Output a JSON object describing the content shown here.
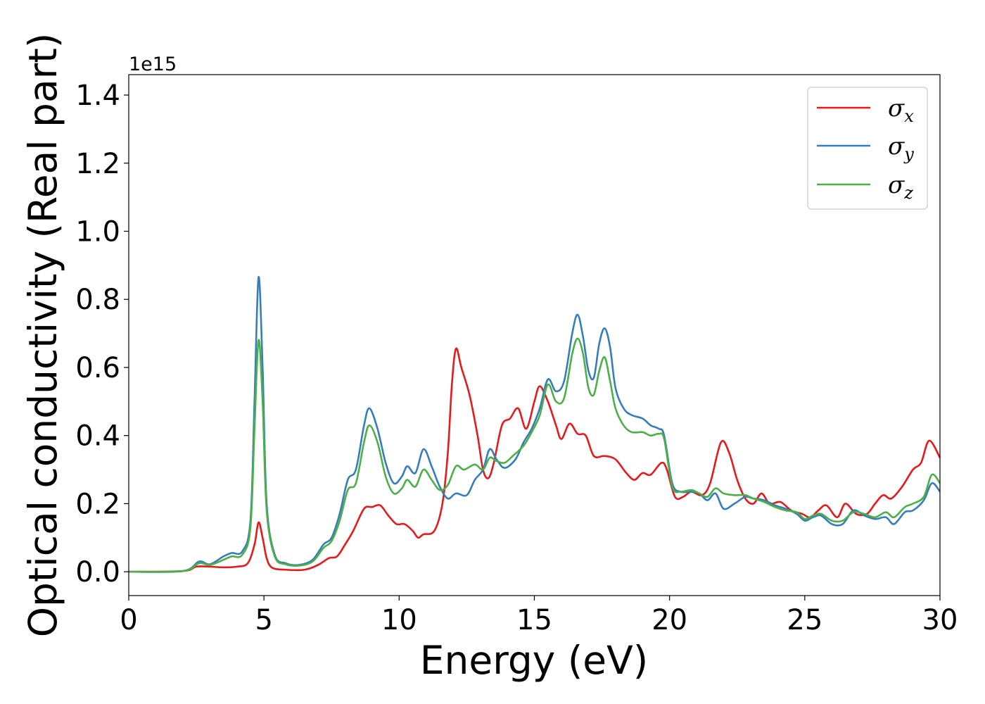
{
  "chart_data": {
    "type": "line",
    "title": "",
    "xlabel": "Energy (eV)",
    "ylabel": "Optical conductivity (Real part)",
    "y_offset_label": "1e15",
    "xlim": [
      0,
      30
    ],
    "ylim": [
      -0.07,
      1.46
    ],
    "xticks": [
      0,
      5,
      10,
      15,
      20,
      25,
      30
    ],
    "yticks": [
      0.0,
      0.2,
      0.4,
      0.6,
      0.8,
      1.0,
      1.2,
      1.4
    ],
    "ytick_labels": [
      "0.0",
      "0.2",
      "0.4",
      "0.6",
      "0.8",
      "1.0",
      "1.2",
      "1.4"
    ],
    "grid": false,
    "legend_position": "top-right",
    "series": [
      {
        "name": "σx",
        "symbol": "σ",
        "subscript": "x",
        "color": "#e41a1c",
        "points": [
          [
            0,
            0
          ],
          [
            2,
            0.002
          ],
          [
            2.5,
            0.015
          ],
          [
            3,
            0.015
          ],
          [
            3.5,
            0.013
          ],
          [
            4,
            0.015
          ],
          [
            4.4,
            0.025
          ],
          [
            4.65,
            0.08
          ],
          [
            4.8,
            0.145
          ],
          [
            4.95,
            0.1
          ],
          [
            5.1,
            0.04
          ],
          [
            5.3,
            0.012
          ],
          [
            5.8,
            0.006
          ],
          [
            6.5,
            0.006
          ],
          [
            7,
            0.02
          ],
          [
            7.4,
            0.04
          ],
          [
            7.7,
            0.045
          ],
          [
            8,
            0.08
          ],
          [
            8.3,
            0.12
          ],
          [
            8.7,
            0.185
          ],
          [
            9,
            0.19
          ],
          [
            9.3,
            0.195
          ],
          [
            9.6,
            0.165
          ],
          [
            9.9,
            0.14
          ],
          [
            10.2,
            0.14
          ],
          [
            10.5,
            0.12
          ],
          [
            10.7,
            0.1
          ],
          [
            10.9,
            0.11
          ],
          [
            11.3,
            0.12
          ],
          [
            11.6,
            0.2
          ],
          [
            11.8,
            0.35
          ],
          [
            11.95,
            0.55
          ],
          [
            12.1,
            0.655
          ],
          [
            12.3,
            0.6
          ],
          [
            12.6,
            0.52
          ],
          [
            12.9,
            0.4
          ],
          [
            13.1,
            0.3
          ],
          [
            13.3,
            0.275
          ],
          [
            13.5,
            0.32
          ],
          [
            13.8,
            0.43
          ],
          [
            14.1,
            0.45
          ],
          [
            14.4,
            0.48
          ],
          [
            14.7,
            0.42
          ],
          [
            15.0,
            0.5
          ],
          [
            15.2,
            0.545
          ],
          [
            15.5,
            0.5
          ],
          [
            15.8,
            0.43
          ],
          [
            16.0,
            0.39
          ],
          [
            16.3,
            0.435
          ],
          [
            16.6,
            0.405
          ],
          [
            16.9,
            0.4
          ],
          [
            17.2,
            0.34
          ],
          [
            17.6,
            0.34
          ],
          [
            18.0,
            0.33
          ],
          [
            18.4,
            0.29
          ],
          [
            18.7,
            0.27
          ],
          [
            19.0,
            0.29
          ],
          [
            19.3,
            0.285
          ],
          [
            19.7,
            0.32
          ],
          [
            19.9,
            0.3
          ],
          [
            20.2,
            0.22
          ],
          [
            20.5,
            0.22
          ],
          [
            20.8,
            0.235
          ],
          [
            21.2,
            0.225
          ],
          [
            21.5,
            0.26
          ],
          [
            21.9,
            0.38
          ],
          [
            22.2,
            0.35
          ],
          [
            22.5,
            0.27
          ],
          [
            22.8,
            0.215
          ],
          [
            23.1,
            0.2
          ],
          [
            23.4,
            0.23
          ],
          [
            23.7,
            0.2
          ],
          [
            24.1,
            0.205
          ],
          [
            24.5,
            0.18
          ],
          [
            24.9,
            0.17
          ],
          [
            25.2,
            0.16
          ],
          [
            25.5,
            0.18
          ],
          [
            25.8,
            0.195
          ],
          [
            26.2,
            0.16
          ],
          [
            26.5,
            0.2
          ],
          [
            26.9,
            0.17
          ],
          [
            27.3,
            0.17
          ],
          [
            27.6,
            0.2
          ],
          [
            27.9,
            0.225
          ],
          [
            28.2,
            0.215
          ],
          [
            28.6,
            0.25
          ],
          [
            29.0,
            0.3
          ],
          [
            29.3,
            0.32
          ],
          [
            29.6,
            0.385
          ],
          [
            30.0,
            0.335
          ]
        ]
      },
      {
        "name": "σy",
        "symbol": "σ",
        "subscript": "y",
        "color": "#377eb8",
        "points": [
          [
            0,
            0
          ],
          [
            2,
            0.002
          ],
          [
            2.6,
            0.03
          ],
          [
            3,
            0.022
          ],
          [
            3.5,
            0.045
          ],
          [
            3.8,
            0.055
          ],
          [
            4.2,
            0.06
          ],
          [
            4.5,
            0.15
          ],
          [
            4.65,
            0.5
          ],
          [
            4.8,
            0.865
          ],
          [
            4.95,
            0.6
          ],
          [
            5.1,
            0.2
          ],
          [
            5.4,
            0.05
          ],
          [
            5.8,
            0.025
          ],
          [
            6.3,
            0.02
          ],
          [
            6.8,
            0.035
          ],
          [
            7.2,
            0.08
          ],
          [
            7.5,
            0.1
          ],
          [
            7.8,
            0.17
          ],
          [
            8.1,
            0.27
          ],
          [
            8.4,
            0.3
          ],
          [
            8.7,
            0.43
          ],
          [
            8.9,
            0.48
          ],
          [
            9.2,
            0.42
          ],
          [
            9.5,
            0.32
          ],
          [
            9.8,
            0.26
          ],
          [
            10.1,
            0.28
          ],
          [
            10.3,
            0.31
          ],
          [
            10.6,
            0.29
          ],
          [
            10.9,
            0.36
          ],
          [
            11.2,
            0.31
          ],
          [
            11.5,
            0.25
          ],
          [
            11.8,
            0.215
          ],
          [
            12.1,
            0.23
          ],
          [
            12.5,
            0.225
          ],
          [
            12.8,
            0.27
          ],
          [
            13.1,
            0.3
          ],
          [
            13.35,
            0.36
          ],
          [
            13.6,
            0.33
          ],
          [
            13.9,
            0.305
          ],
          [
            14.3,
            0.33
          ],
          [
            14.6,
            0.38
          ],
          [
            14.9,
            0.42
          ],
          [
            15.2,
            0.48
          ],
          [
            15.5,
            0.565
          ],
          [
            15.8,
            0.53
          ],
          [
            16.1,
            0.56
          ],
          [
            16.4,
            0.7
          ],
          [
            16.6,
            0.755
          ],
          [
            16.8,
            0.69
          ],
          [
            17.0,
            0.59
          ],
          [
            17.2,
            0.57
          ],
          [
            17.4,
            0.67
          ],
          [
            17.6,
            0.715
          ],
          [
            17.8,
            0.66
          ],
          [
            18.0,
            0.54
          ],
          [
            18.3,
            0.48
          ],
          [
            18.6,
            0.46
          ],
          [
            19.0,
            0.45
          ],
          [
            19.3,
            0.43
          ],
          [
            19.6,
            0.42
          ],
          [
            19.8,
            0.4
          ],
          [
            20.1,
            0.26
          ],
          [
            20.4,
            0.235
          ],
          [
            20.8,
            0.235
          ],
          [
            21.1,
            0.23
          ],
          [
            21.4,
            0.21
          ],
          [
            21.7,
            0.23
          ],
          [
            22.0,
            0.185
          ],
          [
            22.4,
            0.2
          ],
          [
            22.8,
            0.22
          ],
          [
            23.1,
            0.215
          ],
          [
            23.5,
            0.21
          ],
          [
            23.9,
            0.195
          ],
          [
            24.3,
            0.185
          ],
          [
            24.7,
            0.17
          ],
          [
            25.0,
            0.15
          ],
          [
            25.3,
            0.16
          ],
          [
            25.6,
            0.165
          ],
          [
            26.0,
            0.14
          ],
          [
            26.4,
            0.14
          ],
          [
            26.8,
            0.18
          ],
          [
            27.2,
            0.165
          ],
          [
            27.6,
            0.155
          ],
          [
            28.0,
            0.16
          ],
          [
            28.3,
            0.14
          ],
          [
            28.7,
            0.175
          ],
          [
            29.0,
            0.18
          ],
          [
            29.4,
            0.21
          ],
          [
            29.7,
            0.26
          ],
          [
            30.0,
            0.235
          ]
        ]
      },
      {
        "name": "σz",
        "symbol": "σ",
        "subscript": "z",
        "color": "#4daf4a",
        "points": [
          [
            0,
            0
          ],
          [
            2,
            0.002
          ],
          [
            2.6,
            0.025
          ],
          [
            3,
            0.02
          ],
          [
            3.5,
            0.035
          ],
          [
            3.8,
            0.045
          ],
          [
            4.2,
            0.05
          ],
          [
            4.5,
            0.13
          ],
          [
            4.65,
            0.42
          ],
          [
            4.8,
            0.68
          ],
          [
            4.95,
            0.5
          ],
          [
            5.1,
            0.18
          ],
          [
            5.4,
            0.045
          ],
          [
            5.8,
            0.022
          ],
          [
            6.3,
            0.018
          ],
          [
            6.8,
            0.03
          ],
          [
            7.2,
            0.07
          ],
          [
            7.5,
            0.09
          ],
          [
            7.8,
            0.15
          ],
          [
            8.1,
            0.24
          ],
          [
            8.4,
            0.26
          ],
          [
            8.7,
            0.38
          ],
          [
            8.9,
            0.43
          ],
          [
            9.2,
            0.38
          ],
          [
            9.5,
            0.28
          ],
          [
            9.8,
            0.23
          ],
          [
            10.1,
            0.245
          ],
          [
            10.3,
            0.27
          ],
          [
            10.6,
            0.25
          ],
          [
            10.9,
            0.3
          ],
          [
            11.2,
            0.27
          ],
          [
            11.5,
            0.24
          ],
          [
            11.8,
            0.255
          ],
          [
            12.1,
            0.31
          ],
          [
            12.4,
            0.3
          ],
          [
            12.8,
            0.315
          ],
          [
            13.1,
            0.3
          ],
          [
            13.35,
            0.335
          ],
          [
            13.6,
            0.325
          ],
          [
            13.9,
            0.32
          ],
          [
            14.2,
            0.34
          ],
          [
            14.6,
            0.37
          ],
          [
            14.9,
            0.41
          ],
          [
            15.2,
            0.46
          ],
          [
            15.5,
            0.55
          ],
          [
            15.8,
            0.5
          ],
          [
            16.1,
            0.51
          ],
          [
            16.4,
            0.64
          ],
          [
            16.6,
            0.685
          ],
          [
            16.8,
            0.64
          ],
          [
            17.0,
            0.54
          ],
          [
            17.2,
            0.52
          ],
          [
            17.4,
            0.59
          ],
          [
            17.6,
            0.63
          ],
          [
            17.8,
            0.56
          ],
          [
            18.0,
            0.48
          ],
          [
            18.3,
            0.43
          ],
          [
            18.6,
            0.41
          ],
          [
            19.0,
            0.41
          ],
          [
            19.3,
            0.4
          ],
          [
            19.6,
            0.405
          ],
          [
            19.8,
            0.39
          ],
          [
            20.1,
            0.25
          ],
          [
            20.4,
            0.235
          ],
          [
            20.8,
            0.24
          ],
          [
            21.1,
            0.23
          ],
          [
            21.4,
            0.22
          ],
          [
            21.7,
            0.245
          ],
          [
            22.0,
            0.23
          ],
          [
            22.4,
            0.225
          ],
          [
            22.8,
            0.225
          ],
          [
            23.1,
            0.215
          ],
          [
            23.5,
            0.205
          ],
          [
            23.9,
            0.19
          ],
          [
            24.3,
            0.18
          ],
          [
            24.7,
            0.175
          ],
          [
            25.0,
            0.155
          ],
          [
            25.3,
            0.165
          ],
          [
            25.6,
            0.17
          ],
          [
            26.0,
            0.15
          ],
          [
            26.4,
            0.15
          ],
          [
            26.8,
            0.175
          ],
          [
            27.2,
            0.17
          ],
          [
            27.6,
            0.16
          ],
          [
            28.0,
            0.175
          ],
          [
            28.3,
            0.16
          ],
          [
            28.7,
            0.19
          ],
          [
            29.0,
            0.2
          ],
          [
            29.4,
            0.22
          ],
          [
            29.7,
            0.285
          ],
          [
            30.0,
            0.26
          ]
        ]
      }
    ]
  }
}
